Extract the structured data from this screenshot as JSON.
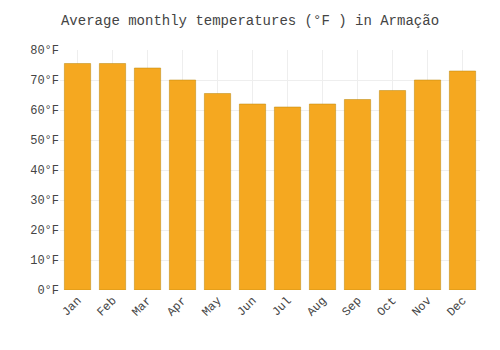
{
  "chart_data": {
    "type": "bar",
    "title": "Average monthly temperatures (°F ) in Armação",
    "categories": [
      "Jan",
      "Feb",
      "Mar",
      "Apr",
      "May",
      "Jun",
      "Jul",
      "Aug",
      "Sep",
      "Oct",
      "Nov",
      "Dec"
    ],
    "values": [
      75.5,
      75.5,
      74.0,
      70.0,
      65.5,
      62.0,
      61.0,
      62.0,
      63.5,
      66.5,
      70.0,
      73.0
    ],
    "color": "#F5A820",
    "ylim": [
      0,
      80
    ],
    "yticks": [
      {
        "value": 0,
        "label": "0°F"
      },
      {
        "value": 10,
        "label": "10°F"
      },
      {
        "value": 20,
        "label": "20°F"
      },
      {
        "value": 30,
        "label": "30°F"
      },
      {
        "value": 40,
        "label": "40°F"
      },
      {
        "value": 50,
        "label": "50°F"
      },
      {
        "value": 60,
        "label": "60°F"
      },
      {
        "value": 70,
        "label": "70°F"
      },
      {
        "value": 80,
        "label": "80°F"
      }
    ],
    "grid": true
  }
}
